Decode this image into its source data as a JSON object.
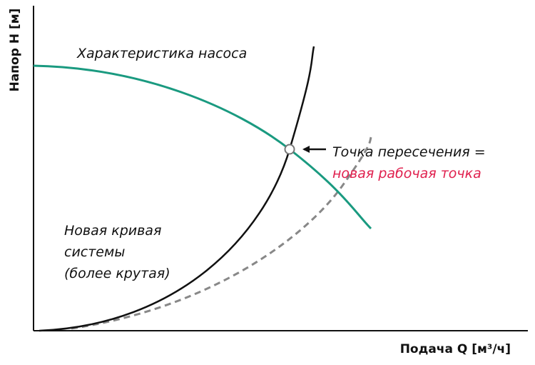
{
  "axes": {
    "y_label": "Напор H [м]",
    "x_label": "Подача Q  [м³/ч]"
  },
  "labels": {
    "pump_curve": "Характеристика насоса",
    "intersection": [
      "Точка пересечения =",
      "новая рабочая точка"
    ],
    "new_system_curve": [
      "Новая кривая",
      "системы",
      "(более крутая)"
    ]
  }
}
